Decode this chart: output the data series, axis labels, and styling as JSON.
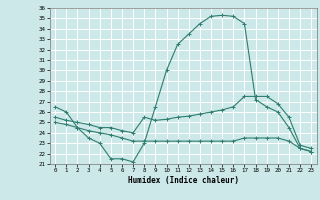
{
  "xlabel": "Humidex (Indice chaleur)",
  "bg_color": "#cce8e8",
  "grid_color": "#ffffff",
  "line_color": "#2e7d6e",
  "xlim": [
    -0.5,
    23.5
  ],
  "ylim": [
    21,
    36
  ],
  "xticks": [
    0,
    1,
    2,
    3,
    4,
    5,
    6,
    7,
    8,
    9,
    10,
    11,
    12,
    13,
    14,
    15,
    16,
    17,
    18,
    19,
    20,
    21,
    22,
    23
  ],
  "yticks": [
    21,
    22,
    23,
    24,
    25,
    26,
    27,
    28,
    29,
    30,
    31,
    32,
    33,
    34,
    35,
    36
  ],
  "series": [
    {
      "x": [
        0,
        1,
        2,
        3,
        4,
        5,
        6,
        7,
        8,
        9,
        10,
        11,
        12,
        13,
        14,
        15,
        16,
        17,
        18,
        19,
        20,
        21,
        22,
        23
      ],
      "y": [
        26.5,
        26.0,
        24.5,
        23.5,
        23.0,
        21.5,
        21.5,
        21.2,
        23.0,
        26.5,
        30.0,
        32.5,
        33.5,
        34.5,
        35.2,
        35.3,
        35.2,
        34.5,
        27.2,
        26.5,
        26.0,
        24.5,
        22.5,
        22.2
      ],
      "marker": "+"
    },
    {
      "x": [
        0,
        1,
        2,
        3,
        4,
        5,
        6,
        7,
        8,
        9,
        10,
        11,
        12,
        13,
        14,
        15,
        16,
        17,
        18,
        19,
        20,
        21,
        22,
        23
      ],
      "y": [
        25.5,
        25.2,
        25.0,
        24.8,
        24.5,
        24.5,
        24.2,
        24.0,
        25.5,
        25.2,
        25.3,
        25.5,
        25.6,
        25.8,
        26.0,
        26.2,
        26.5,
        27.5,
        27.5,
        27.5,
        26.8,
        25.5,
        22.8,
        22.5
      ],
      "marker": "+"
    },
    {
      "x": [
        0,
        1,
        2,
        3,
        4,
        5,
        6,
        7,
        8,
        9,
        10,
        11,
        12,
        13,
        14,
        15,
        16,
        17,
        18,
        19,
        20,
        21,
        22,
        23
      ],
      "y": [
        25.0,
        24.8,
        24.5,
        24.2,
        24.0,
        23.8,
        23.5,
        23.2,
        23.2,
        23.2,
        23.2,
        23.2,
        23.2,
        23.2,
        23.2,
        23.2,
        23.2,
        23.5,
        23.5,
        23.5,
        23.5,
        23.2,
        22.5,
        22.2
      ],
      "marker": "+"
    }
  ]
}
